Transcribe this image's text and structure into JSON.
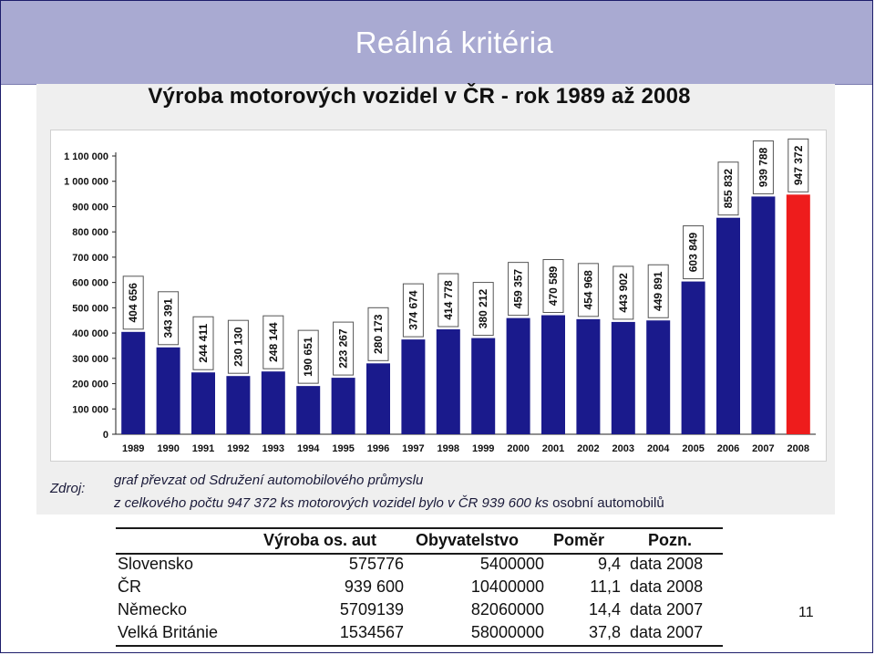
{
  "slide": {
    "title": "Reálná kritéria",
    "page_number": "11"
  },
  "source": {
    "label": "Zdroj:",
    "line1": "graf převzat od Sdružení automobilového průmyslu",
    "line2_italic": "z celkového počtu 947 372 ks motorových vozidel  bylo v ČR 939 600 ks",
    "line2_normal": " osobní automobilů"
  },
  "table": {
    "headers": [
      "Výroba os. aut",
      "Obyvatelstvo",
      "Poměr",
      "Pozn."
    ],
    "rows": [
      {
        "country": "Slovensko",
        "production": "575776",
        "population": "5400000",
        "ratio": "9,4",
        "note": "data 2008"
      },
      {
        "country": "ČR",
        "production": "939 600",
        "population": "10400000",
        "ratio": "11,1",
        "note": "data 2008"
      },
      {
        "country": "Německo",
        "production": "5709139",
        "population": "82060000",
        "ratio": "14,4",
        "note": "data 2007"
      },
      {
        "country": "Velká Británie",
        "production": "1534567",
        "population": "58000000",
        "ratio": "37,8",
        "note": "data 2007"
      }
    ]
  },
  "chart_data": {
    "type": "bar",
    "title": "Výroba motorových vozidel v ČR - rok 1989 až 2008",
    "categories": [
      "1989",
      "1990",
      "1991",
      "1992",
      "1993",
      "1994",
      "1995",
      "1996",
      "1997",
      "1998",
      "1999",
      "2000",
      "2001",
      "2002",
      "2003",
      "2004",
      "2005",
      "2006",
      "2007",
      "2008"
    ],
    "values": [
      404656,
      343391,
      244411,
      230130,
      248144,
      190651,
      223267,
      280173,
      374674,
      414778,
      380212,
      459357,
      470589,
      454968,
      443902,
      449891,
      603849,
      855832,
      939788,
      947372
    ],
    "value_labels": [
      "404 656",
      "343 391",
      "244 411",
      "230 130",
      "248 144",
      "190 651",
      "223 267",
      "280 173",
      "374 674",
      "414 778",
      "380 212",
      "459 357",
      "470 589",
      "454 968",
      "443 902",
      "449 891",
      "603 849",
      "855 832",
      "939 788",
      "947 372"
    ],
    "y_ticks": [
      0,
      100000,
      200000,
      300000,
      400000,
      500000,
      600000,
      700000,
      800000,
      900000,
      1000000,
      1100000
    ],
    "y_tick_labels": [
      "0",
      "100 000",
      "200 000",
      "300 000",
      "400 000",
      "500 000",
      "600 000",
      "700 000",
      "800 000",
      "900 000",
      "1 000 000",
      "1 100 000"
    ],
    "ylim": [
      0,
      1100000
    ],
    "bar_color": "#1a1a8c",
    "highlight_color": "#ee1c1c",
    "highlight_category": "2008",
    "grid": false,
    "legend": "none"
  }
}
